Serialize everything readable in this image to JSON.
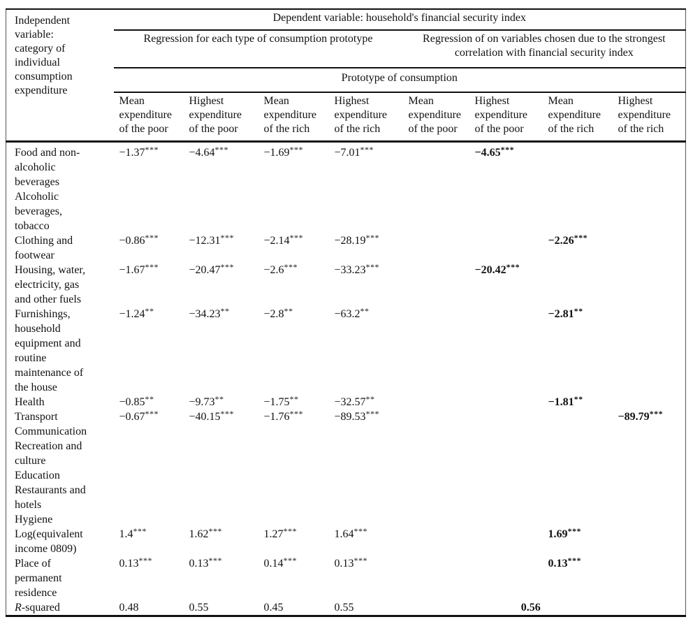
{
  "table": {
    "stub_header": "Independent variable: category of individual consumption expenditure",
    "dependent_variable_header": "Dependent variable: household's financial security index",
    "group_headers": [
      "Regression for each type of consumption prototype",
      "Regression of on variables chosen due to the strongest correlation with financial security index"
    ],
    "prototype_header": "Prototype of consumption",
    "column_headers": [
      "Mean expenditure of the poor",
      "Highest expenditure of the poor",
      "Mean expenditure of the rich",
      "Highest expenditure of the rich",
      "Mean expenditure of the poor",
      "Highest expenditure of the poor",
      "Mean expenditure of the rich",
      "Highest expenditure of the rich"
    ],
    "rows": [
      {
        "label": "Food and non-alcoholic beverages",
        "cells": [
          {
            "v": "−1.37",
            "s": "***"
          },
          {
            "v": "−4.64",
            "s": "***"
          },
          {
            "v": "−1.69",
            "s": "***"
          },
          {
            "v": "−7.01",
            "s": "***"
          },
          null,
          {
            "v": "−4.65",
            "s": "***",
            "b": true
          },
          null,
          null
        ]
      },
      {
        "label": "Alcoholic beverages, tobacco",
        "cells": [
          null,
          null,
          null,
          null,
          null,
          null,
          null,
          null
        ]
      },
      {
        "label": "Clothing and footwear",
        "cells": [
          {
            "v": "−0.86",
            "s": "***"
          },
          {
            "v": "−12.31",
            "s": "***"
          },
          {
            "v": "−2.14",
            "s": "***"
          },
          {
            "v": "−28.19",
            "s": "***"
          },
          null,
          null,
          {
            "v": "−2.26",
            "s": "***",
            "b": true
          },
          null
        ]
      },
      {
        "label": "Housing, water, electricity, gas and other fuels",
        "cells": [
          {
            "v": "−1.67",
            "s": "***"
          },
          {
            "v": "−20.47",
            "s": "***"
          },
          {
            "v": "−2.6",
            "s": "***"
          },
          {
            "v": "−33.23",
            "s": "***"
          },
          null,
          {
            "v": "−20.42",
            "s": "***",
            "b": true
          },
          null,
          null
        ]
      },
      {
        "label": "Furnishings, household equipment and routine maintenance of the house",
        "cells": [
          {
            "v": "−1.24",
            "s": "**"
          },
          {
            "v": "−34.23",
            "s": "**"
          },
          {
            "v": "−2.8",
            "s": "**"
          },
          {
            "v": "−63.2",
            "s": "**"
          },
          null,
          null,
          {
            "v": "−2.81",
            "s": "**",
            "b": true
          },
          null
        ]
      },
      {
        "label": "Health",
        "cells": [
          {
            "v": "−0.85",
            "s": "**"
          },
          {
            "v": "−9.73",
            "s": "**"
          },
          {
            "v": "−1.75",
            "s": "**"
          },
          {
            "v": "−32.57",
            "s": "**"
          },
          null,
          null,
          {
            "v": "−1.81",
            "s": "**",
            "b": true
          },
          null
        ]
      },
      {
        "label": "Transport",
        "cells": [
          {
            "v": "−0.67",
            "s": "***"
          },
          {
            "v": "−40.15",
            "s": "***"
          },
          {
            "v": "−1.76",
            "s": "***"
          },
          {
            "v": "−89.53",
            "s": "***"
          },
          null,
          null,
          null,
          {
            "v": "−89.79",
            "s": "***",
            "b": true
          }
        ]
      },
      {
        "label": "Communication",
        "cells": [
          null,
          null,
          null,
          null,
          null,
          null,
          null,
          null
        ]
      },
      {
        "label": "Recreation and culture",
        "cells": [
          null,
          null,
          null,
          null,
          null,
          null,
          null,
          null
        ]
      },
      {
        "label": "Education",
        "cells": [
          null,
          null,
          null,
          null,
          null,
          null,
          null,
          null
        ]
      },
      {
        "label": "Restaurants and hotels",
        "cells": [
          null,
          null,
          null,
          null,
          null,
          null,
          null,
          null
        ]
      },
      {
        "label": "Hygiene",
        "cells": [
          null,
          null,
          null,
          null,
          null,
          null,
          null,
          null
        ]
      },
      {
        "label": "Log(equivalent income 0809)",
        "cells": [
          {
            "v": "1.4",
            "s": "***"
          },
          {
            "v": "1.62",
            "s": "***"
          },
          {
            "v": "1.27",
            "s": "***"
          },
          {
            "v": "1.64",
            "s": "***"
          },
          null,
          null,
          {
            "v": "1.69",
            "s": "***",
            "b": true
          },
          null
        ]
      },
      {
        "label": "Place of permanent residence",
        "cells": [
          {
            "v": "0.13",
            "s": "***"
          },
          {
            "v": "0.13",
            "s": "***"
          },
          {
            "v": "0.14",
            "s": "***"
          },
          {
            "v": "0.13",
            "s": "***"
          },
          null,
          null,
          {
            "v": "0.13",
            "s": "***",
            "b": true
          },
          null
        ]
      },
      {
        "label": "R-squared",
        "italic_first": true,
        "cells": [
          {
            "v": "0.48"
          },
          {
            "v": "0.55"
          },
          {
            "v": "0.45"
          },
          {
            "v": "0.55"
          }
        ],
        "span_cell": {
          "v": "0.56",
          "b": true,
          "colspan": 4
        }
      }
    ]
  }
}
